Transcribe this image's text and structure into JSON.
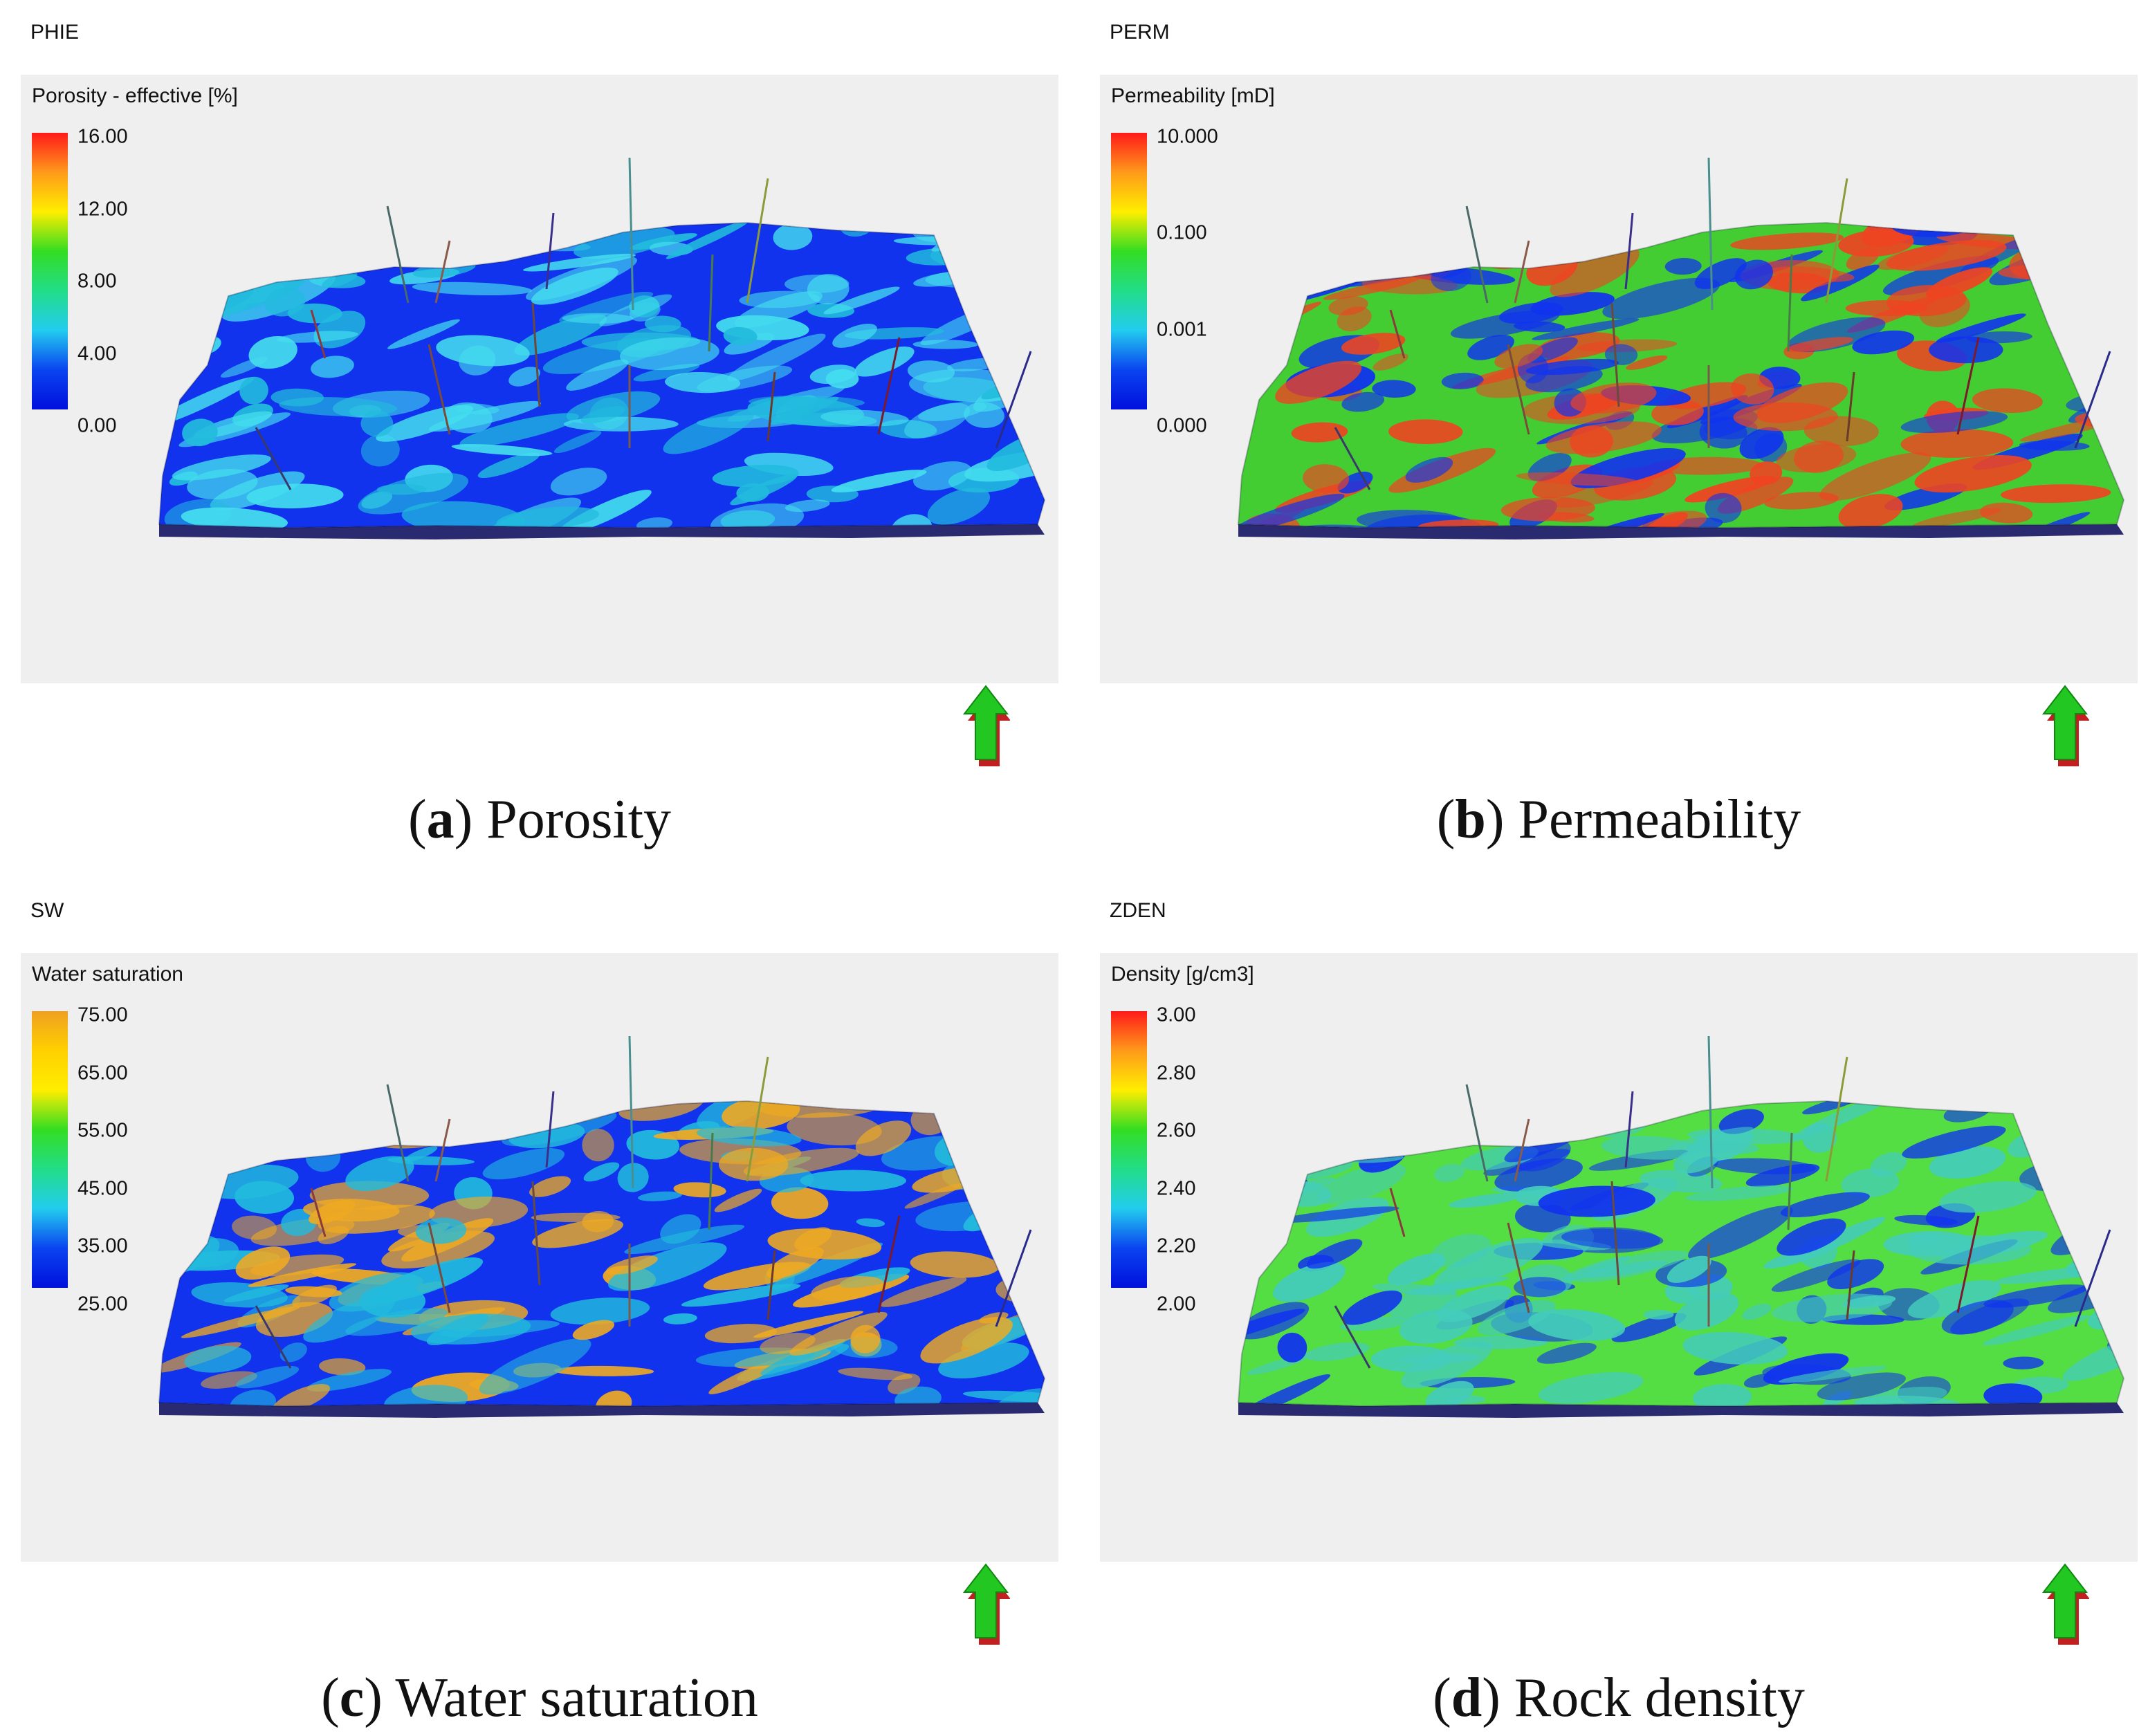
{
  "panels": [
    {
      "id": "a",
      "code": "PHIE",
      "property_title": "Porosity - effective [%]",
      "legend_ticks": [
        "16.00",
        "12.00",
        "8.00",
        "4.00",
        "0.00"
      ],
      "colormap": [
        "#ff1a1a",
        "#ff9a1a",
        "#ffee00",
        "#33dd22",
        "#22dd88",
        "#22ccee",
        "#0a44f0",
        "#0010dd"
      ],
      "dominant_colors": [
        "#1133ee",
        "#22bbdd",
        "#44ddee"
      ],
      "caption_letter": "a",
      "caption_text": " Porosity"
    },
    {
      "id": "b",
      "code": "PERM",
      "property_title": "Permeability [mD]",
      "legend_ticks": [
        "10.000",
        "0.100",
        "0.001",
        "0.000"
      ],
      "colormap": [
        "#ff1a1a",
        "#ff9a1a",
        "#ffee00",
        "#33dd22",
        "#22dd88",
        "#22ccee",
        "#0a44f0",
        "#0010dd"
      ],
      "dominant_colors": [
        "#44cc33",
        "#1133ee",
        "#ee4422"
      ],
      "caption_letter": "b",
      "caption_text": " Permeability"
    },
    {
      "id": "c",
      "code": "SW",
      "property_title": "Water saturation",
      "legend_ticks": [
        "75.00",
        "65.00",
        "55.00",
        "45.00",
        "35.00",
        "25.00"
      ],
      "colormap": [
        "#f0a020",
        "#ffd000",
        "#ffee00",
        "#33dd22",
        "#22dd88",
        "#22ccee",
        "#0a44f0",
        "#0010dd"
      ],
      "dominant_colors": [
        "#1133ee",
        "#eeaa22",
        "#22bbdd"
      ],
      "caption_letter": "c",
      "caption_text": " Water saturation"
    },
    {
      "id": "d",
      "code": "ZDEN",
      "property_title": "Density [g/cm3]",
      "legend_ticks": [
        "3.00",
        "2.80",
        "2.60",
        "2.40",
        "2.20",
        "2.00"
      ],
      "colormap": [
        "#ff1a1a",
        "#ff9a1a",
        "#ffee00",
        "#33dd22",
        "#22dd88",
        "#22ccee",
        "#0a44f0",
        "#0010dd"
      ],
      "dominant_colors": [
        "#55dd44",
        "#44ccbb",
        "#1133ee"
      ],
      "caption_letter": "d",
      "caption_text": " Rock density"
    }
  ]
}
